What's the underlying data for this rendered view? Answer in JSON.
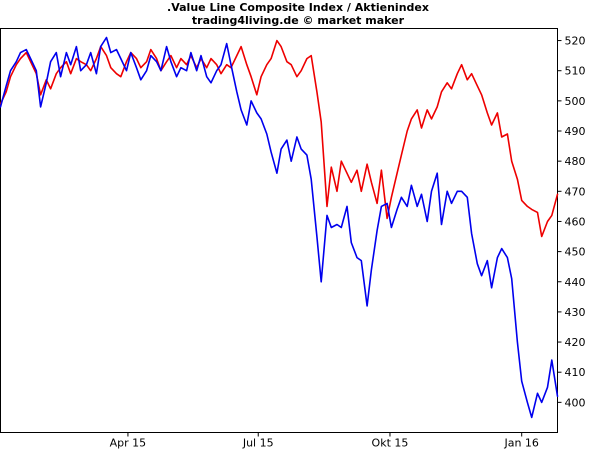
{
  "chart_data": {
    "type": "line",
    "title": ".Value Line Composite Index / Aktienindex",
    "subtitle": "trading4living.de © market maker",
    "ylim": [
      390,
      524
    ],
    "yticks": [
      400,
      410,
      420,
      430,
      440,
      450,
      460,
      470,
      480,
      490,
      500,
      510,
      520
    ],
    "xlim": [
      "2015-01-02",
      "2016-01-26"
    ],
    "xticks": [
      {
        "label": "Apr 15",
        "date": "2015-04-01"
      },
      {
        "label": "Jul 15",
        "date": "2015-07-01"
      },
      {
        "label": "Okt 15",
        "date": "2015-10-01"
      },
      {
        "label": "Jan 16",
        "date": "2016-01-01"
      }
    ],
    "grid": false,
    "series": [
      {
        "color": "#ee0000",
        "x": [
          "2015-01-02",
          "2015-01-06",
          "2015-01-09",
          "2015-01-13",
          "2015-01-16",
          "2015-01-20",
          "2015-01-23",
          "2015-01-27",
          "2015-01-30",
          "2015-02-03",
          "2015-02-06",
          "2015-02-10",
          "2015-02-13",
          "2015-02-17",
          "2015-02-20",
          "2015-02-24",
          "2015-02-27",
          "2015-03-03",
          "2015-03-06",
          "2015-03-10",
          "2015-03-13",
          "2015-03-17",
          "2015-03-20",
          "2015-03-24",
          "2015-03-27",
          "2015-03-31",
          "2015-04-03",
          "2015-04-07",
          "2015-04-10",
          "2015-04-14",
          "2015-04-17",
          "2015-04-21",
          "2015-04-24",
          "2015-04-28",
          "2015-05-01",
          "2015-05-05",
          "2015-05-08",
          "2015-05-12",
          "2015-05-15",
          "2015-05-19",
          "2015-05-22",
          "2015-05-26",
          "2015-05-29",
          "2015-06-02",
          "2015-06-05",
          "2015-06-09",
          "2015-06-12",
          "2015-06-16",
          "2015-06-19",
          "2015-06-23",
          "2015-06-26",
          "2015-06-30",
          "2015-07-03",
          "2015-07-07",
          "2015-07-10",
          "2015-07-14",
          "2015-07-17",
          "2015-07-21",
          "2015-07-24",
          "2015-07-28",
          "2015-07-31",
          "2015-08-04",
          "2015-08-07",
          "2015-08-11",
          "2015-08-14",
          "2015-08-18",
          "2015-08-21",
          "2015-08-25",
          "2015-08-28",
          "2015-09-01",
          "2015-09-04",
          "2015-09-08",
          "2015-09-11",
          "2015-09-15",
          "2015-09-18",
          "2015-09-22",
          "2015-09-25",
          "2015-09-29",
          "2015-10-02",
          "2015-10-06",
          "2015-10-09",
          "2015-10-13",
          "2015-10-16",
          "2015-10-20",
          "2015-10-23",
          "2015-10-27",
          "2015-10-30",
          "2015-11-03",
          "2015-11-06",
          "2015-11-10",
          "2015-11-13",
          "2015-11-17",
          "2015-11-20",
          "2015-11-24",
          "2015-11-27",
          "2015-12-01",
          "2015-12-04",
          "2015-12-08",
          "2015-12-11",
          "2015-12-15",
          "2015-12-18",
          "2015-12-22",
          "2015-12-25",
          "2015-12-29",
          "2016-01-01",
          "2016-01-05",
          "2016-01-08",
          "2016-01-12",
          "2016-01-15",
          "2016-01-19",
          "2016-01-22",
          "2016-01-26"
        ],
        "values": [
          499,
          503,
          508,
          512,
          514,
          516,
          513,
          509,
          502,
          507,
          504,
          509,
          511,
          513,
          509,
          514,
          513,
          512,
          510,
          514,
          518,
          515,
          511,
          509,
          508,
          513,
          516,
          514,
          511,
          513,
          517,
          514,
          510,
          513,
          515,
          511,
          514,
          512,
          515,
          511,
          514,
          511,
          514,
          512,
          509,
          512,
          511,
          515,
          518,
          512,
          508,
          502,
          508,
          512,
          514,
          520,
          518,
          513,
          512,
          508,
          510,
          514,
          515,
          503,
          493,
          465,
          478,
          470,
          480,
          476,
          473,
          477,
          470,
          479,
          473,
          466,
          477,
          461,
          468,
          476,
          482,
          490,
          494,
          497,
          491,
          497,
          494,
          498,
          503,
          506,
          504,
          509,
          512,
          507,
          509,
          505,
          502,
          496,
          492,
          496,
          488,
          489,
          480,
          474,
          467,
          465,
          464,
          463,
          455,
          460,
          462,
          469
        ]
      },
      {
        "color": "#0000ee",
        "x": [
          "2015-01-02",
          "2015-01-06",
          "2015-01-09",
          "2015-01-13",
          "2015-01-16",
          "2015-01-20",
          "2015-01-23",
          "2015-01-27",
          "2015-01-30",
          "2015-02-03",
          "2015-02-06",
          "2015-02-10",
          "2015-02-13",
          "2015-02-17",
          "2015-02-20",
          "2015-02-24",
          "2015-02-27",
          "2015-03-03",
          "2015-03-06",
          "2015-03-10",
          "2015-03-13",
          "2015-03-17",
          "2015-03-20",
          "2015-03-24",
          "2015-03-27",
          "2015-03-31",
          "2015-04-03",
          "2015-04-07",
          "2015-04-10",
          "2015-04-14",
          "2015-04-17",
          "2015-04-21",
          "2015-04-24",
          "2015-04-28",
          "2015-05-01",
          "2015-05-05",
          "2015-05-08",
          "2015-05-12",
          "2015-05-15",
          "2015-05-19",
          "2015-05-22",
          "2015-05-26",
          "2015-05-29",
          "2015-06-02",
          "2015-06-05",
          "2015-06-09",
          "2015-06-12",
          "2015-06-16",
          "2015-06-19",
          "2015-06-23",
          "2015-06-26",
          "2015-06-30",
          "2015-07-03",
          "2015-07-07",
          "2015-07-10",
          "2015-07-14",
          "2015-07-17",
          "2015-07-21",
          "2015-07-24",
          "2015-07-28",
          "2015-07-31",
          "2015-08-04",
          "2015-08-07",
          "2015-08-11",
          "2015-08-14",
          "2015-08-18",
          "2015-08-21",
          "2015-08-25",
          "2015-08-28",
          "2015-09-01",
          "2015-09-04",
          "2015-09-08",
          "2015-09-11",
          "2015-09-15",
          "2015-09-18",
          "2015-09-22",
          "2015-09-25",
          "2015-09-29",
          "2015-10-02",
          "2015-10-06",
          "2015-10-09",
          "2015-10-13",
          "2015-10-16",
          "2015-10-20",
          "2015-10-23",
          "2015-10-27",
          "2015-10-30",
          "2015-11-03",
          "2015-11-06",
          "2015-11-10",
          "2015-11-13",
          "2015-11-17",
          "2015-11-20",
          "2015-11-24",
          "2015-11-27",
          "2015-12-01",
          "2015-12-04",
          "2015-12-08",
          "2015-12-11",
          "2015-12-15",
          "2015-12-18",
          "2015-12-22",
          "2015-12-25",
          "2015-12-29",
          "2016-01-01",
          "2016-01-05",
          "2016-01-08",
          "2016-01-12",
          "2016-01-15",
          "2016-01-19",
          "2016-01-22",
          "2016-01-26"
        ],
        "values": [
          498,
          505,
          510,
          513,
          516,
          517,
          514,
          510,
          498,
          506,
          513,
          516,
          508,
          516,
          512,
          518,
          510,
          512,
          516,
          509,
          518,
          521,
          516,
          517,
          514,
          510,
          516,
          511,
          507,
          510,
          515,
          513,
          510,
          518,
          513,
          508,
          511,
          510,
          516,
          510,
          515,
          508,
          506,
          510,
          512,
          519,
          512,
          503,
          497,
          492,
          500,
          496,
          494,
          489,
          483,
          476,
          484,
          487,
          480,
          488,
          484,
          482,
          474,
          455,
          440,
          462,
          458,
          459,
          458,
          465,
          453,
          448,
          447,
          432,
          444,
          457,
          465,
          466,
          458,
          464,
          468,
          465,
          472,
          465,
          469,
          460,
          470,
          476,
          459,
          470,
          466,
          470,
          470,
          468,
          456,
          446,
          442,
          447,
          438,
          448,
          451,
          448,
          441,
          420,
          407,
          400,
          395,
          403,
          400,
          405,
          414,
          402
        ]
      }
    ]
  }
}
